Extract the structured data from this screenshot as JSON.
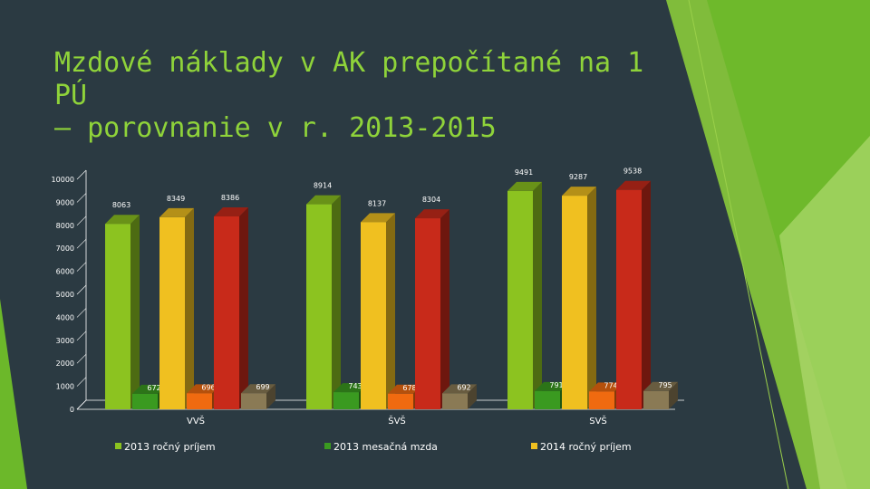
{
  "slide": {
    "title_line1": "Mzdové náklady v AK prepočítané na 1 PÚ",
    "title_line2": "– porovnanie v r. 2013-2015",
    "title_color": "#8fd33a",
    "background": "#2b3a42"
  },
  "chart_data": {
    "type": "bar",
    "categories": [
      "VVŠ",
      "ŠVŠ",
      "SVŠ"
    ],
    "y_ticks": [
      "0",
      "1000",
      "2000",
      "3000",
      "4000",
      "5000",
      "6000",
      "7000",
      "8000",
      "9000",
      "10000"
    ],
    "ylim": [
      0,
      10000
    ],
    "grid": false,
    "legend_position": "bottom",
    "series": [
      {
        "name": "2013 ročný príjem",
        "values": [
          8063,
          8914,
          9491
        ],
        "labels": [
          "8063",
          "8914",
          "9491"
        ],
        "color": "#8cc320",
        "legend": true
      },
      {
        "name": "2013 mesačná mzda",
        "values": [
          672,
          743,
          791
        ],
        "labels": [
          "672",
          "743",
          "791"
        ],
        "color": "#3a9a20",
        "legend": true
      },
      {
        "name": "2014 ročný príjem",
        "values": [
          8349,
          8137,
          9287
        ],
        "labels": [
          "8349",
          "8137",
          "9287"
        ],
        "color": "#f0c020",
        "legend": true
      },
      {
        "name": "",
        "values": [
          696,
          678,
          774
        ],
        "labels": [
          "696",
          "678",
          "774"
        ],
        "color": "#f06a10",
        "legend": false
      },
      {
        "name": "",
        "values": [
          8386,
          8304,
          9538
        ],
        "labels": [
          "8386",
          "8304",
          "9538"
        ],
        "color": "#c82a1a",
        "legend": false
      },
      {
        "name": "",
        "values": [
          699,
          692,
          795
        ],
        "labels": [
          "699",
          "692",
          "795"
        ],
        "color": "#8a7a55",
        "legend": false
      }
    ]
  }
}
